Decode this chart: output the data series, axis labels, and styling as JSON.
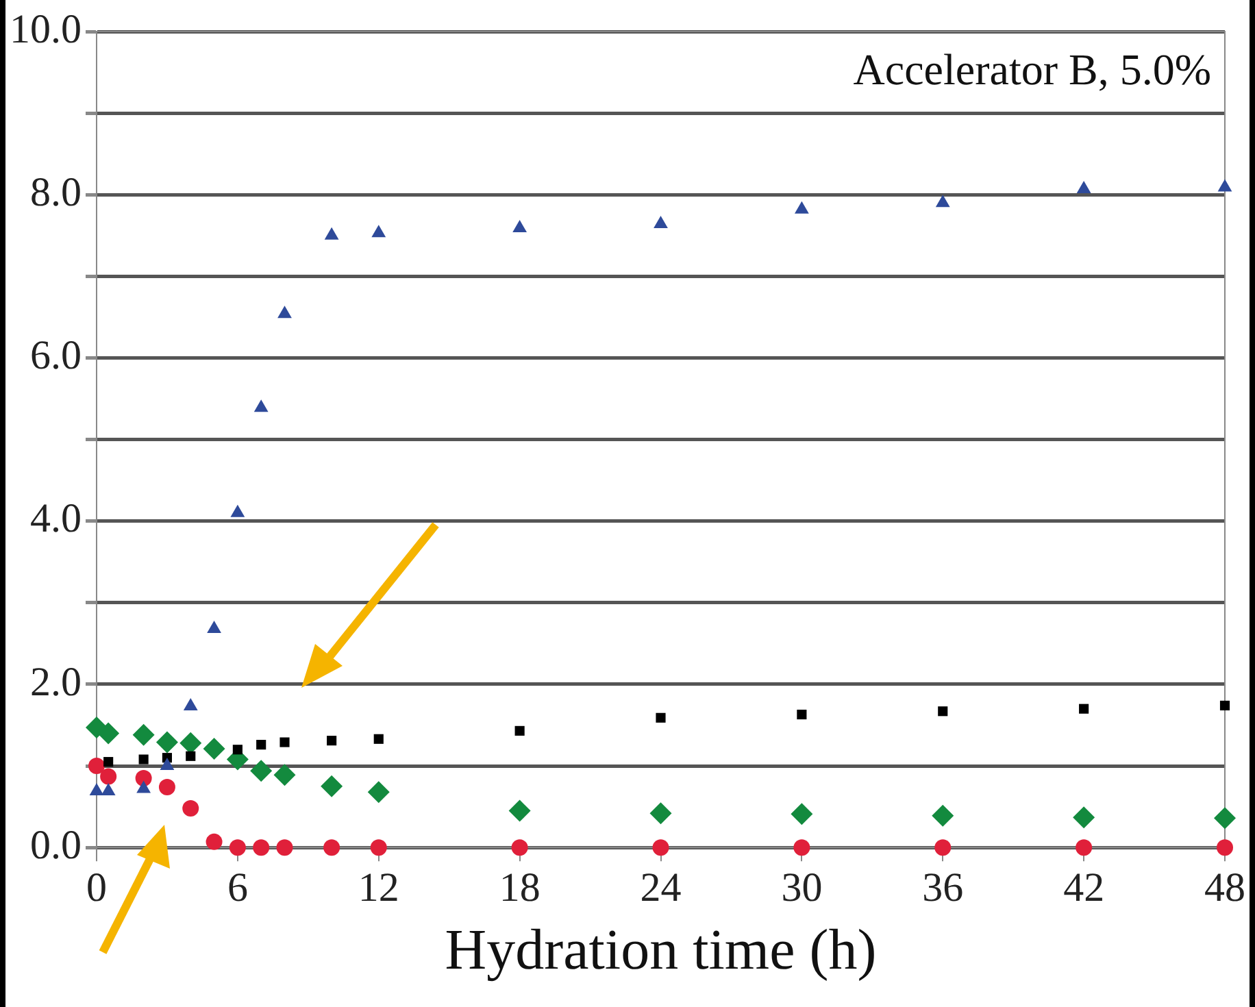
{
  "chart_data": {
    "type": "scatter",
    "title": "Accelerator B, 5.0%",
    "xlabel": "Hydration time (h)",
    "x": [
      0,
      0.5,
      2,
      3,
      4,
      5,
      6,
      7,
      8,
      10,
      12,
      18,
      24,
      30,
      36,
      42,
      48
    ],
    "series": [
      {
        "color": "#2e4a9a",
        "marker": "triangle",
        "values": [
          0.69,
          0.69,
          0.72,
          1.0,
          1.73,
          2.68,
          4.1,
          5.39,
          6.54,
          7.5,
          7.53,
          7.59,
          7.64,
          7.82,
          7.9,
          8.07,
          8.09
        ]
      },
      {
        "color": "#000000",
        "marker": "square",
        "values": [
          null,
          1.05,
          1.08,
          1.1,
          1.12,
          null,
          1.2,
          1.26,
          1.29,
          1.31,
          1.33,
          1.43,
          1.59,
          1.63,
          1.67,
          1.7,
          1.74
        ]
      },
      {
        "color": "#138a3e",
        "marker": "diamond",
        "values": [
          1.47,
          1.4,
          1.38,
          1.29,
          1.28,
          1.21,
          1.08,
          0.94,
          0.89,
          0.75,
          0.68,
          0.45,
          0.42,
          0.41,
          0.39,
          0.37,
          0.36
        ]
      },
      {
        "color": "#e0203a",
        "marker": "circle",
        "values": [
          1.0,
          0.87,
          0.85,
          0.74,
          0.48,
          0.07,
          0,
          0,
          0,
          0,
          0,
          0,
          0,
          0,
          0,
          0,
          0
        ]
      }
    ],
    "xlim": [
      0,
      48
    ],
    "xticks": [
      0,
      6,
      12,
      18,
      24,
      30,
      36,
      42,
      48
    ],
    "ylim": [
      0,
      10
    ],
    "yticks": [
      {
        "value": 0,
        "label": "0.0"
      },
      {
        "value": 1,
        "label": null
      },
      {
        "value": 2,
        "label": "2.0"
      },
      {
        "value": 3,
        "label": null
      },
      {
        "value": 4,
        "label": "4.0"
      },
      {
        "value": 5,
        "label": null
      },
      {
        "value": 6,
        "label": "6.0"
      },
      {
        "value": 7,
        "label": null
      },
      {
        "value": 8,
        "label": "8.0"
      },
      {
        "value": 9,
        "label": null
      },
      {
        "value": 10,
        "label": "10.0"
      }
    ],
    "grid": "y",
    "legend": false
  }
}
